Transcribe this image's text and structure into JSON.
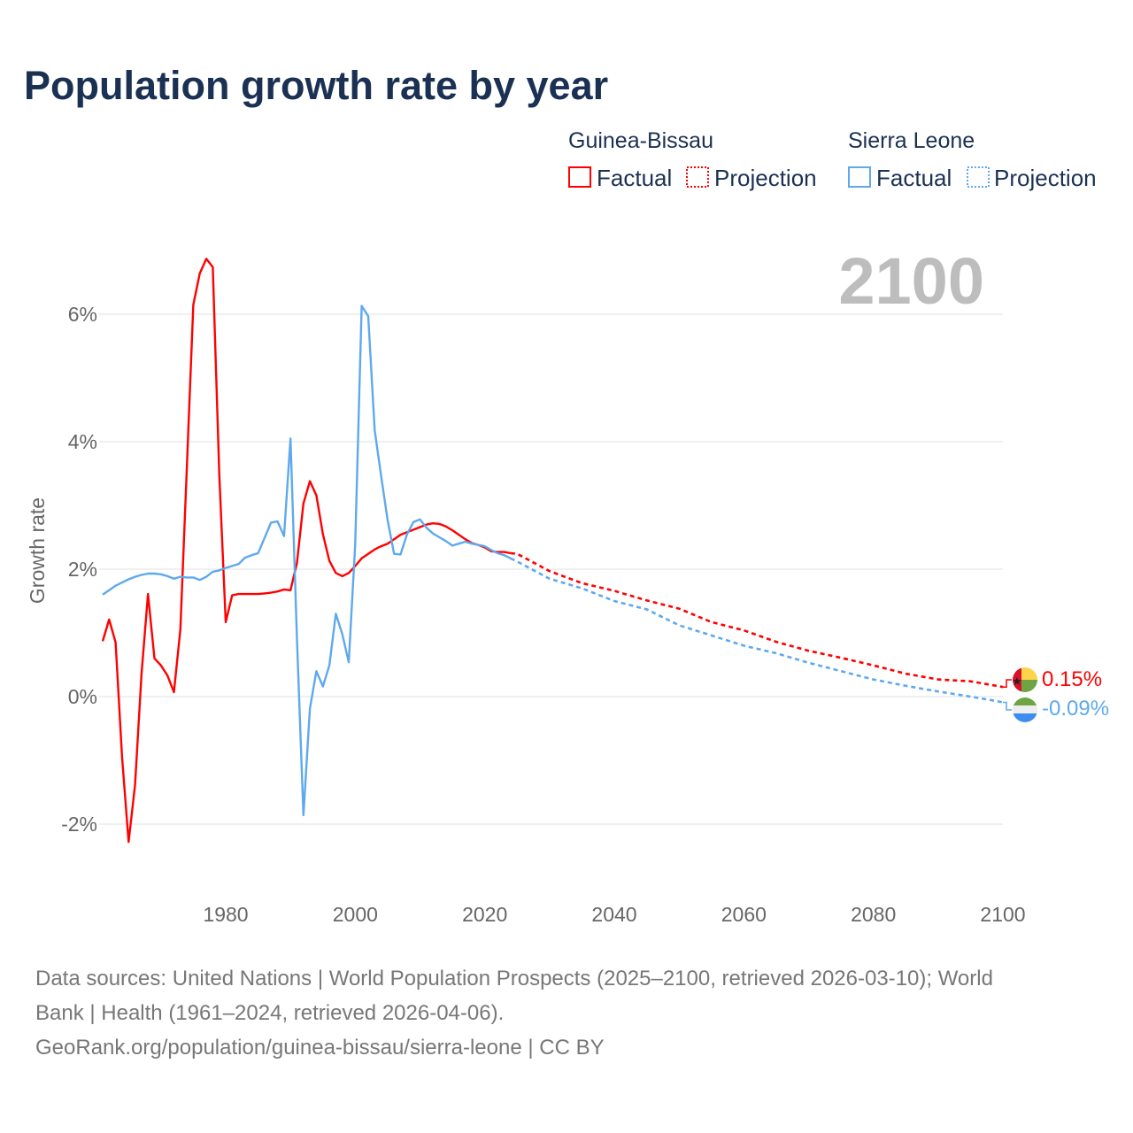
{
  "chart_data": {
    "type": "line",
    "title": "Population growth rate by year",
    "ylabel": "Growth rate",
    "xlabel": "",
    "xlim": [
      1961,
      2100
    ],
    "ylim": [
      -3,
      7
    ],
    "x_ticks": [
      "1980",
      "2000",
      "2020",
      "2040",
      "2060",
      "2080",
      "2100"
    ],
    "y_ticks": [
      {
        "value": 6,
        "label": "6%"
      },
      {
        "value": 4,
        "label": "4%"
      },
      {
        "value": 2,
        "label": "2%"
      },
      {
        "value": 0,
        "label": "0%"
      },
      {
        "value": -2,
        "label": "-2%"
      }
    ],
    "grid": true,
    "current_year_label": "2100",
    "legend": {
      "placement": "top-right",
      "groups": [
        {
          "name": "Guinea-Bissau",
          "factual": "Factual",
          "projection": "Projection",
          "color": "#ff0000"
        },
        {
          "name": "Sierra Leone",
          "factual": "Factual",
          "projection": "Projection",
          "color": "#5ea9ee"
        }
      ]
    },
    "series": [
      {
        "name": "Guinea-Bissau",
        "color": "#ff0000",
        "end_label": "0.15%",
        "factual": {
          "x": [
            1961,
            1962,
            1963,
            1964,
            1965,
            1966,
            1967,
            1968,
            1969,
            1970,
            1971,
            1972,
            1973,
            1974,
            1975,
            1976,
            1977,
            1978,
            1979,
            1980,
            1981,
            1982,
            1983,
            1984,
            1985,
            1986,
            1987,
            1988,
            1989,
            1990,
            1991,
            1992,
            1993,
            1994,
            1995,
            1996,
            1997,
            1998,
            1999,
            2000,
            2001,
            2002,
            2003,
            2004,
            2005,
            2006,
            2007,
            2008,
            2009,
            2010,
            2011,
            2012,
            2013,
            2014,
            2015,
            2016,
            2017,
            2018,
            2019,
            2020,
            2021,
            2022,
            2023,
            2024
          ],
          "y": [
            0.87,
            1.21,
            0.85,
            -0.95,
            -2.28,
            -1.38,
            0.36,
            1.61,
            0.6,
            0.49,
            0.33,
            0.07,
            1.06,
            3.6,
            6.15,
            6.64,
            6.87,
            6.74,
            3.5,
            1.17,
            1.59,
            1.61,
            1.61,
            1.61,
            1.61,
            1.62,
            1.63,
            1.65,
            1.68,
            1.67,
            2.1,
            3.03,
            3.38,
            3.16,
            2.55,
            2.13,
            1.94,
            1.89,
            1.94,
            2.05,
            2.17,
            2.24,
            2.31,
            2.36,
            2.4,
            2.47,
            2.54,
            2.58,
            2.62,
            2.66,
            2.7,
            2.72,
            2.71,
            2.67,
            2.61,
            2.54,
            2.47,
            2.41,
            2.38,
            2.34,
            2.28,
            2.27,
            2.27,
            2.25
          ]
        },
        "projection": {
          "x": [
            2024,
            2025,
            2030,
            2035,
            2040,
            2045,
            2050,
            2055,
            2060,
            2065,
            2070,
            2075,
            2080,
            2085,
            2090,
            2095,
            2099,
            2100
          ],
          "y": [
            2.25,
            2.24,
            1.97,
            1.78,
            1.66,
            1.51,
            1.38,
            1.17,
            1.04,
            0.86,
            0.72,
            0.61,
            0.49,
            0.36,
            0.27,
            0.24,
            0.17,
            0.15
          ]
        }
      },
      {
        "name": "Sierra Leone",
        "color": "#5ea9ee",
        "end_label": "-0.09%",
        "factual": {
          "x": [
            1961,
            1962,
            1963,
            1964,
            1965,
            1966,
            1967,
            1968,
            1969,
            1970,
            1971,
            1972,
            1973,
            1974,
            1975,
            1976,
            1977,
            1978,
            1979,
            1980,
            1981,
            1982,
            1983,
            1984,
            1985,
            1986,
            1987,
            1988,
            1989,
            1990,
            1991,
            1992,
            1993,
            1994,
            1995,
            1996,
            1997,
            1998,
            1999,
            2000,
            2001,
            2002,
            2003,
            2004,
            2005,
            2006,
            2007,
            2008,
            2009,
            2010,
            2011,
            2012,
            2013,
            2014,
            2015,
            2016,
            2017,
            2018,
            2019,
            2020,
            2021,
            2022,
            2023,
            2024
          ],
          "y": [
            1.6,
            1.67,
            1.74,
            1.79,
            1.84,
            1.88,
            1.91,
            1.93,
            1.93,
            1.92,
            1.89,
            1.85,
            1.88,
            1.87,
            1.87,
            1.83,
            1.88,
            1.96,
            1.98,
            2.02,
            2.05,
            2.08,
            2.18,
            2.22,
            2.25,
            2.49,
            2.73,
            2.75,
            2.52,
            4.05,
            0.9,
            -1.86,
            -0.19,
            0.4,
            0.16,
            0.49,
            1.3,
            0.98,
            0.54,
            2.39,
            6.13,
            5.97,
            4.18,
            3.46,
            2.77,
            2.24,
            2.23,
            2.55,
            2.74,
            2.78,
            2.65,
            2.56,
            2.5,
            2.44,
            2.37,
            2.4,
            2.43,
            2.4,
            2.38,
            2.36,
            2.3,
            2.25,
            2.22,
            2.17
          ]
        },
        "projection": {
          "x": [
            2024,
            2025,
            2030,
            2035,
            2040,
            2045,
            2050,
            2055,
            2060,
            2065,
            2070,
            2075,
            2080,
            2085,
            2090,
            2095,
            2099,
            2100
          ],
          "y": [
            2.17,
            2.12,
            1.85,
            1.7,
            1.5,
            1.37,
            1.12,
            0.96,
            0.8,
            0.68,
            0.53,
            0.4,
            0.27,
            0.17,
            0.08,
            0.0,
            -0.07,
            -0.09
          ]
        }
      }
    ]
  },
  "footer": {
    "line1": "Data sources: United Nations | World Population Prospects (2025–2100, retrieved 2026-03-10); World",
    "line2": "Bank | Health (1961–2024, retrieved 2026-04-06).",
    "line3": "GeoRank.org/population/guinea-bissau/sierra-leone | CC BY"
  }
}
